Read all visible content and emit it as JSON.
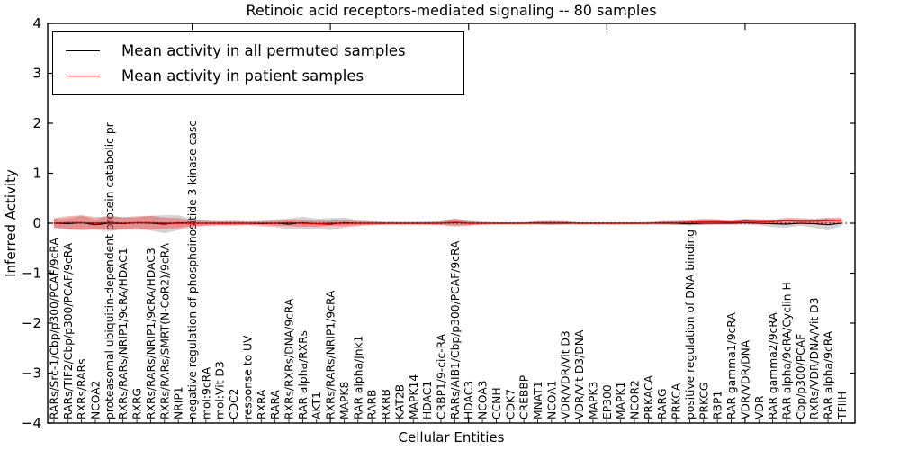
{
  "figure": {
    "kind": "matplotlib-line-plot"
  },
  "legend": {
    "entries": [
      {
        "label": "Mean activity in all permuted samples",
        "color": "#000000"
      },
      {
        "label": "Mean activity in patient samples",
        "color": "#ff0000"
      }
    ]
  },
  "chart_data": {
    "type": "line",
    "title": "Retinoic acid receptors-mediated signaling -- 80 samples",
    "xlabel": "Cellular Entities",
    "ylabel": "Inferred Activity",
    "ylim": [
      -4,
      4
    ],
    "ytick_values": [
      4,
      3,
      2,
      1,
      0,
      -1,
      -2,
      -3,
      -4
    ],
    "ytick_labels": [
      "4",
      "3",
      "2",
      "1",
      "0",
      "−1",
      "−2",
      "−3",
      "−4"
    ],
    "xtick_major_indices": [
      10,
      20,
      30,
      40,
      50
    ],
    "grid": false,
    "zero_line": true,
    "legend_position": "upper left",
    "colors": {
      "axis": "#000000",
      "zero_line": "#000000"
    },
    "categories": [
      "RARs/Src-1/Cbp/p300/PCAF/9cRA",
      "RARs/TIF2/Cbp/p300/PCAF/9cRA",
      "RXRs/RARs",
      "NCOA2",
      "proteasomal ubiquitin-dependent protein catabolic pr",
      "RXRs/RARs/NRIP1/9cRA/HDAC1",
      "RXRG",
      "RXRs/RARs/NRIP1/9cRA/HDAC3",
      "RXRs/RARs/SMRT(N-CoR2)/9cRA",
      "NRIP1",
      "negative regulation of phosphoinositide 3-kinase casc",
      "mol:9cRA",
      "mol:Vit D3",
      "CDC2",
      "response to UV",
      "RXRA",
      "RARA",
      "RXRs/RXRs/DNA/9cRA",
      "RAR alpha/RXRs",
      "AKT1",
      "RXRs/RARs/NRIP1/9cRA",
      "MAPK8",
      "RAR alpha/Jnk1",
      "RARB",
      "RXRB",
      "KAT2B",
      "MAPK14",
      "HDAC1",
      "CRBP1/9-cic-RA",
      "RARs/AIB1/Cbp/p300/PCAF/9cRA",
      "HDAC3",
      "NCOA3",
      "CCNH",
      "CDK7",
      "CREBBP",
      "MNAT1",
      "NCOA1",
      "VDR/VDR/Vit D3",
      "VDR/Vit D3/DNA",
      "MAPK3",
      "EP300",
      "MAPK1",
      "NCOR2",
      "PRKACA",
      "RARG",
      "PRKCA",
      "positive regulation of DNA binding",
      "PRKCG",
      "RBP1",
      "RAR gamma1/9cRA",
      "VDR/VDR/DNA",
      "VDR",
      "RAR gamma2/9cRA",
      "RAR alpha/9cRA/Cyclin H",
      "Cbp/p300/PCAF",
      "RXRs/VDR/DNA/Vit D3",
      "RAR alpha/9cRA",
      "TFIIH"
    ],
    "series": [
      {
        "name": "Mean activity in all permuted samples",
        "color": "#000000",
        "band_color": "#808080",
        "band_alpha": 0.35,
        "values": [
          0,
          -0.01,
          0.01,
          -0.03,
          0,
          -0.01,
          0.01,
          0,
          -0.02,
          0.01,
          0,
          0,
          0,
          0,
          0,
          -0.01,
          0,
          -0.02,
          0.01,
          -0.01,
          -0.02,
          0.01,
          0,
          0,
          0,
          0,
          0,
          0,
          0,
          0.01,
          0,
          0,
          0,
          0,
          0,
          0,
          0,
          0,
          0,
          0,
          0,
          0,
          0,
          0,
          0,
          0,
          -0.01,
          0,
          0,
          0,
          0.01,
          0,
          -0.01,
          -0.02,
          0,
          -0.01,
          -0.03,
          0
        ],
        "band_halfwidth": [
          0.08,
          0.1,
          0.14,
          0.1,
          0.16,
          0.12,
          0.1,
          0.15,
          0.18,
          0.15,
          0.08,
          0.05,
          0.04,
          0.05,
          0.04,
          0.06,
          0.08,
          0.11,
          0.12,
          0.1,
          0.12,
          0.1,
          0.06,
          0.04,
          0.03,
          0.03,
          0.03,
          0.03,
          0.04,
          0.08,
          0.05,
          0.03,
          0.02,
          0.02,
          0.02,
          0.03,
          0.03,
          0.03,
          0.02,
          0.02,
          0.02,
          0.02,
          0.02,
          0.02,
          0.03,
          0.03,
          0.04,
          0.03,
          0.03,
          0.03,
          0.04,
          0.04,
          0.07,
          0.07,
          0.05,
          0.08,
          0.12,
          0.05
        ]
      },
      {
        "name": "Mean activity in patient samples",
        "color": "#ff0000",
        "band_color": "#ff0000",
        "band_alpha": 0.32,
        "values": [
          0,
          0.01,
          0.01,
          0,
          0.01,
          0,
          0.01,
          0.01,
          0,
          0,
          0,
          0,
          0,
          0,
          0,
          0,
          0,
          0.01,
          0,
          -0.01,
          0,
          0,
          0,
          0,
          0,
          0,
          0,
          0,
          0,
          0.02,
          0,
          0,
          0,
          0,
          0,
          0.01,
          0.01,
          0.01,
          0,
          0,
          0,
          0,
          0,
          0,
          0.01,
          0.01,
          0.02,
          0.03,
          0.03,
          0.02,
          0.04,
          0.03,
          0.03,
          0.05,
          0.04,
          0.04,
          0.05,
          0.06
        ],
        "band_halfwidth": [
          0.1,
          0.13,
          0.15,
          0.12,
          0.13,
          0.12,
          0.13,
          0.14,
          0.11,
          0.1,
          0.06,
          0.05,
          0.04,
          0.04,
          0.03,
          0.03,
          0.05,
          0.07,
          0.07,
          0.06,
          0.05,
          0.06,
          0.04,
          0.03,
          0.02,
          0.02,
          0.02,
          0.02,
          0.03,
          0.07,
          0.04,
          0.02,
          0.02,
          0.02,
          0.02,
          0.03,
          0.04,
          0.03,
          0.02,
          0.02,
          0.02,
          0.02,
          0.02,
          0.02,
          0.03,
          0.04,
          0.05,
          0.06,
          0.05,
          0.04,
          0.05,
          0.05,
          0.04,
          0.06,
          0.06,
          0.05,
          0.06,
          0.05
        ]
      }
    ]
  }
}
